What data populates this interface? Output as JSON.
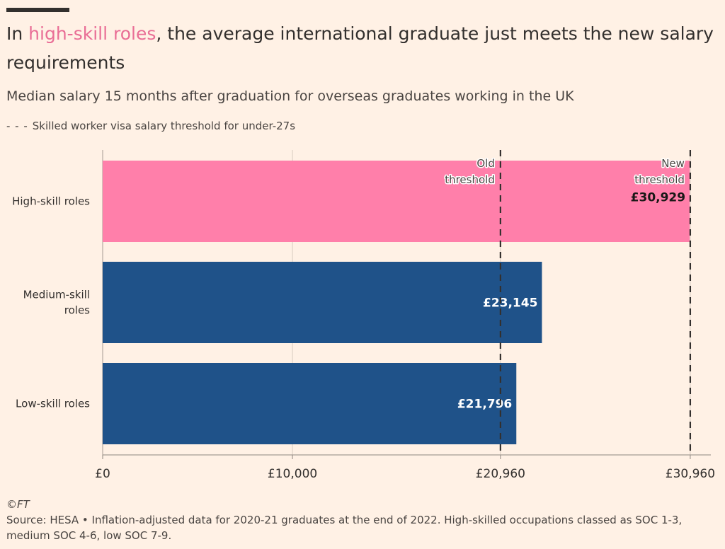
{
  "headline": {
    "prefix": "In ",
    "highlight": "high-skill roles",
    "suffix": ", the average international graduate just meets the new salary requirements",
    "highlight_color": "#E96E96"
  },
  "subtitle": "Median salary 15 months after graduation for overseas graduates working in the UK",
  "legend": {
    "dash": "- - -",
    "label": "Skilled worker visa salary threshold for under-27s"
  },
  "footer": {
    "copyright": "©FT",
    "source": "Source: HESA • Inflation-adjusted data for 2020-21 graduates at the end of 2022. High-skilled occupations classed as SOC 1-3, medium SOC 4-6, low SOC 7-9."
  },
  "chart_data": {
    "type": "bar",
    "orientation": "horizontal",
    "categories": [
      "High-skill roles",
      "Medium-skill roles",
      "Low-skill roles"
    ],
    "category_lines": [
      [
        "High-skill roles"
      ],
      [
        "Medium-skill",
        "roles"
      ],
      [
        "Low-skill roles"
      ]
    ],
    "values": [
      30929,
      23145,
      21796
    ],
    "value_labels": [
      "£30,929",
      "£23,145",
      "£21,796"
    ],
    "bar_colors": [
      "#FF7FAA",
      "#1F5289",
      "#1F5289"
    ],
    "label_colors": [
      "#1A1817",
      "#FFFFFF",
      "#FFFFFF"
    ],
    "xlim": [
      0,
      31000
    ],
    "xticks": [
      0,
      10000,
      20960,
      30960
    ],
    "xtick_labels": [
      "£0",
      "£10,000",
      "£20,960",
      "£30,960"
    ],
    "grid": true,
    "thresholds": [
      {
        "value": 20960,
        "label_lines": [
          "Old",
          "threshold"
        ]
      },
      {
        "value": 30960,
        "label_lines": [
          "New",
          "threshold"
        ]
      }
    ]
  }
}
